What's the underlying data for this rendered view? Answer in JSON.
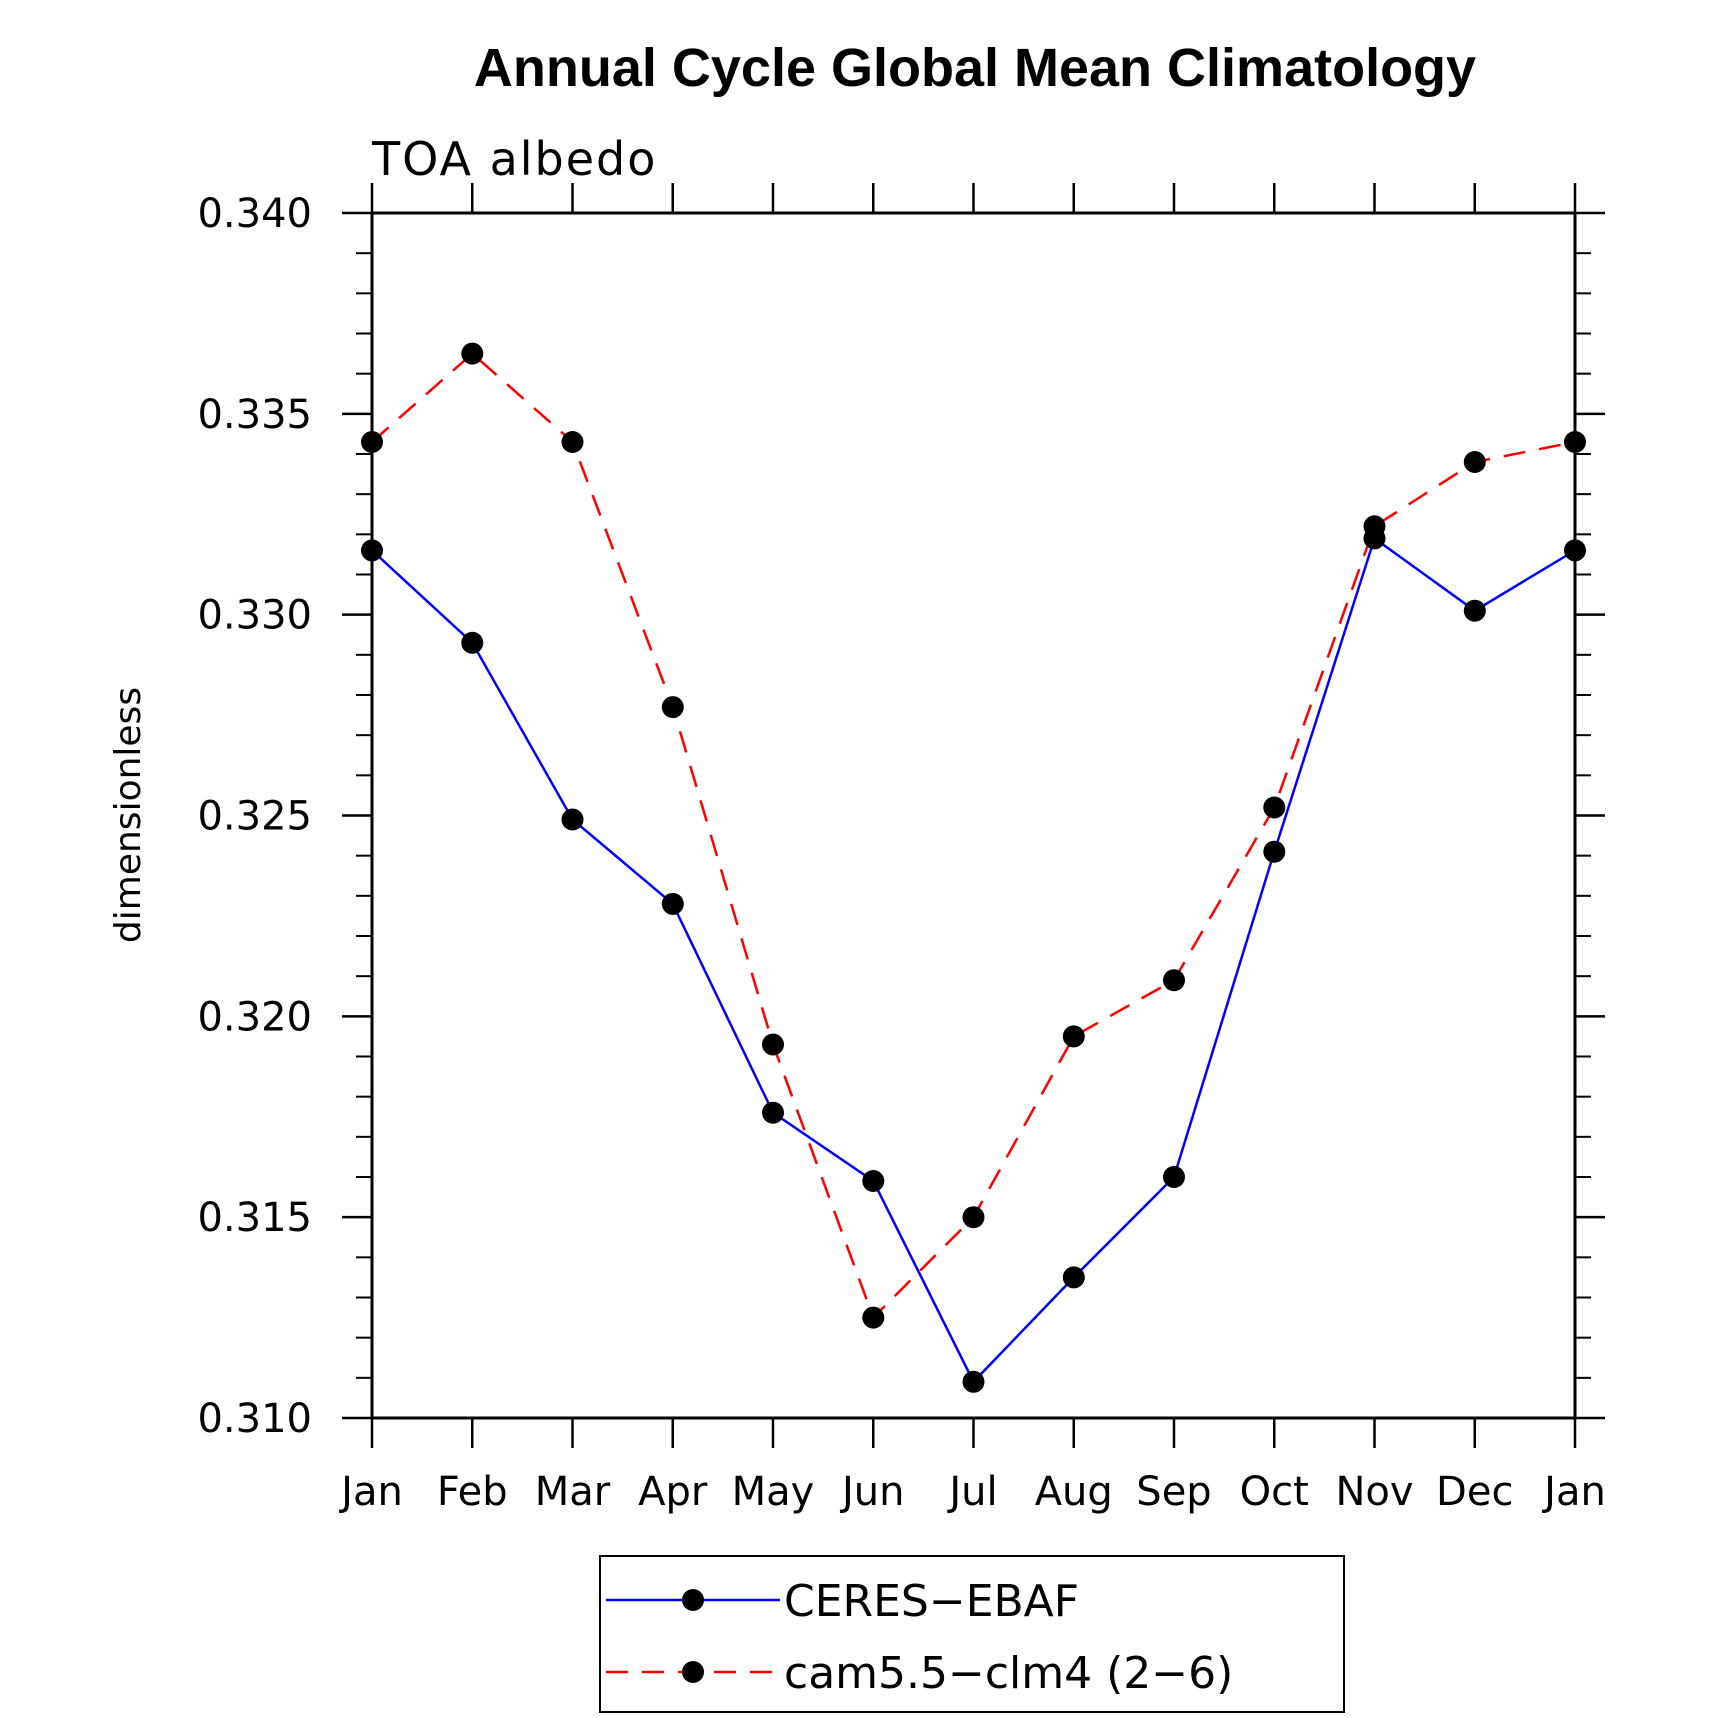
{
  "chart_data": {
    "type": "line",
    "title": "Annual Cycle Global Mean Climatology",
    "subtitle": "TOA albedo",
    "ylabel": "dimensionless",
    "xlabel": "",
    "categories": [
      "Jan",
      "Feb",
      "Mar",
      "Apr",
      "May",
      "Jun",
      "Jul",
      "Aug",
      "Sep",
      "Oct",
      "Nov",
      "Dec",
      "Jan"
    ],
    "ylim": [
      0.31,
      0.34
    ],
    "yticks": [
      "0.310",
      "0.315",
      "0.320",
      "0.325",
      "0.330",
      "0.335",
      "0.340"
    ],
    "grid": false,
    "legend_position": "bottom",
    "series": [
      {
        "name": "CERES−EBAF",
        "color": "#0000ff",
        "line_style": "solid",
        "marker": "filled-circle",
        "values": [
          0.3316,
          0.3293,
          0.3249,
          0.3228,
          0.3176,
          0.3159,
          0.3109,
          0.3135,
          0.316,
          0.3241,
          0.3319,
          0.3301,
          0.3316
        ]
      },
      {
        "name": "cam5.5−clm4 (2−6)",
        "color": "#ff0000",
        "line_style": "dashed",
        "marker": "filled-circle",
        "values": [
          0.3343,
          0.3365,
          0.3343,
          0.3277,
          0.3193,
          0.3125,
          0.315,
          0.3195,
          0.3209,
          0.3252,
          0.3322,
          0.3338,
          0.3343
        ]
      }
    ]
  }
}
